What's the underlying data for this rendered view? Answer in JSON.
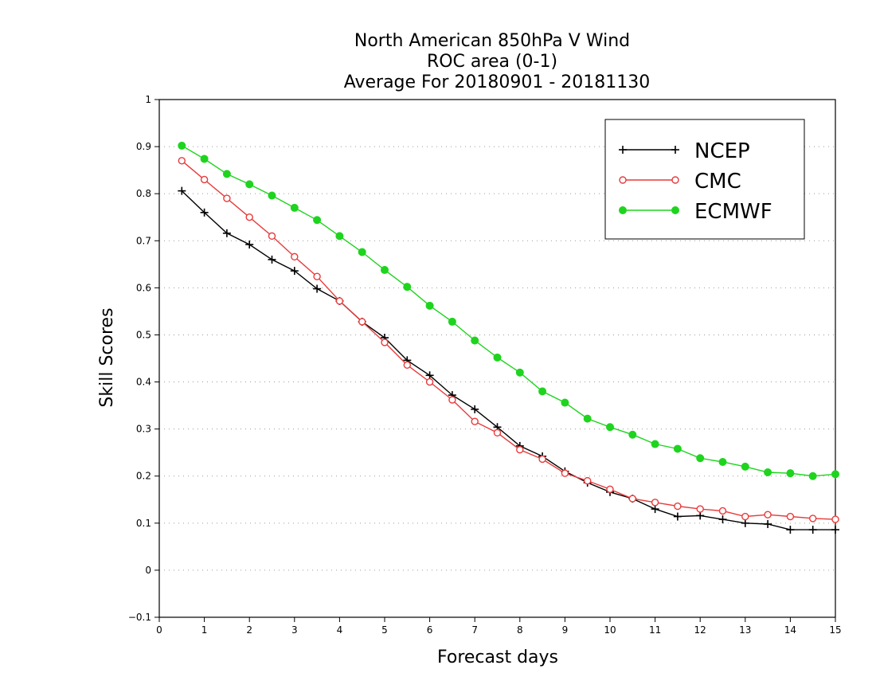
{
  "chart_data": {
    "type": "line",
    "title": [
      "North American 850hPa V Wind",
      "ROC area (0-1)",
      "Average For 20180901 - 20181130"
    ],
    "xlabel": "Forecast days",
    "ylabel": "Skill Scores",
    "xlim": [
      0,
      15
    ],
    "ylim": [
      -0.1,
      1
    ],
    "xticks": [
      "0",
      "1",
      "2",
      "3",
      "4",
      "5",
      "6",
      "7",
      "8",
      "9",
      "10",
      "11",
      "12",
      "13",
      "14",
      "15"
    ],
    "yticks": [
      "−0.1",
      "0",
      "0.1",
      "0.2",
      "0.3",
      "0.4",
      "0.5",
      "0.6",
      "0.7",
      "0.8",
      "0.9",
      "1"
    ],
    "grid": "horizontal dotted",
    "legend_position": "top-right",
    "x": [
      0.5,
      1,
      1.5,
      2,
      2.5,
      3,
      3.5,
      4,
      4.5,
      5,
      5.5,
      6,
      6.5,
      7,
      7.5,
      8,
      8.5,
      9,
      9.5,
      10,
      10.5,
      11,
      11.5,
      12,
      12.5,
      13,
      13.5,
      14,
      14.5,
      15
    ],
    "series": [
      {
        "name": "NCEP",
        "color": "#000000",
        "marker": "plus",
        "values": [
          0.806,
          0.76,
          0.716,
          0.692,
          0.66,
          0.636,
          0.598,
          0.572,
          0.528,
          0.494,
          0.446,
          0.414,
          0.372,
          0.342,
          0.304,
          0.264,
          0.242,
          0.21,
          0.186,
          0.166,
          0.152,
          0.13,
          0.114,
          0.116,
          0.108,
          0.1,
          0.098,
          0.086,
          0.086,
          0.086
        ]
      },
      {
        "name": "CMC",
        "color": "#e83a3a",
        "marker": "open-circle",
        "values": [
          0.87,
          0.83,
          0.79,
          0.75,
          0.71,
          0.666,
          0.624,
          0.572,
          0.528,
          0.484,
          0.436,
          0.4,
          0.362,
          0.316,
          0.292,
          0.256,
          0.236,
          0.206,
          0.19,
          0.172,
          0.152,
          0.144,
          0.136,
          0.13,
          0.126,
          0.114,
          0.118,
          0.114,
          0.11,
          0.108
        ]
      },
      {
        "name": "ECMWF",
        "color": "#1ed41e",
        "marker": "filled-circle",
        "values": [
          0.902,
          0.874,
          0.842,
          0.82,
          0.796,
          0.77,
          0.744,
          0.71,
          0.676,
          0.638,
          0.602,
          0.562,
          0.528,
          0.488,
          0.452,
          0.42,
          0.38,
          0.356,
          0.322,
          0.304,
          0.288,
          0.268,
          0.258,
          0.238,
          0.23,
          0.22,
          0.208,
          0.206,
          0.2,
          0.204
        ]
      }
    ]
  }
}
